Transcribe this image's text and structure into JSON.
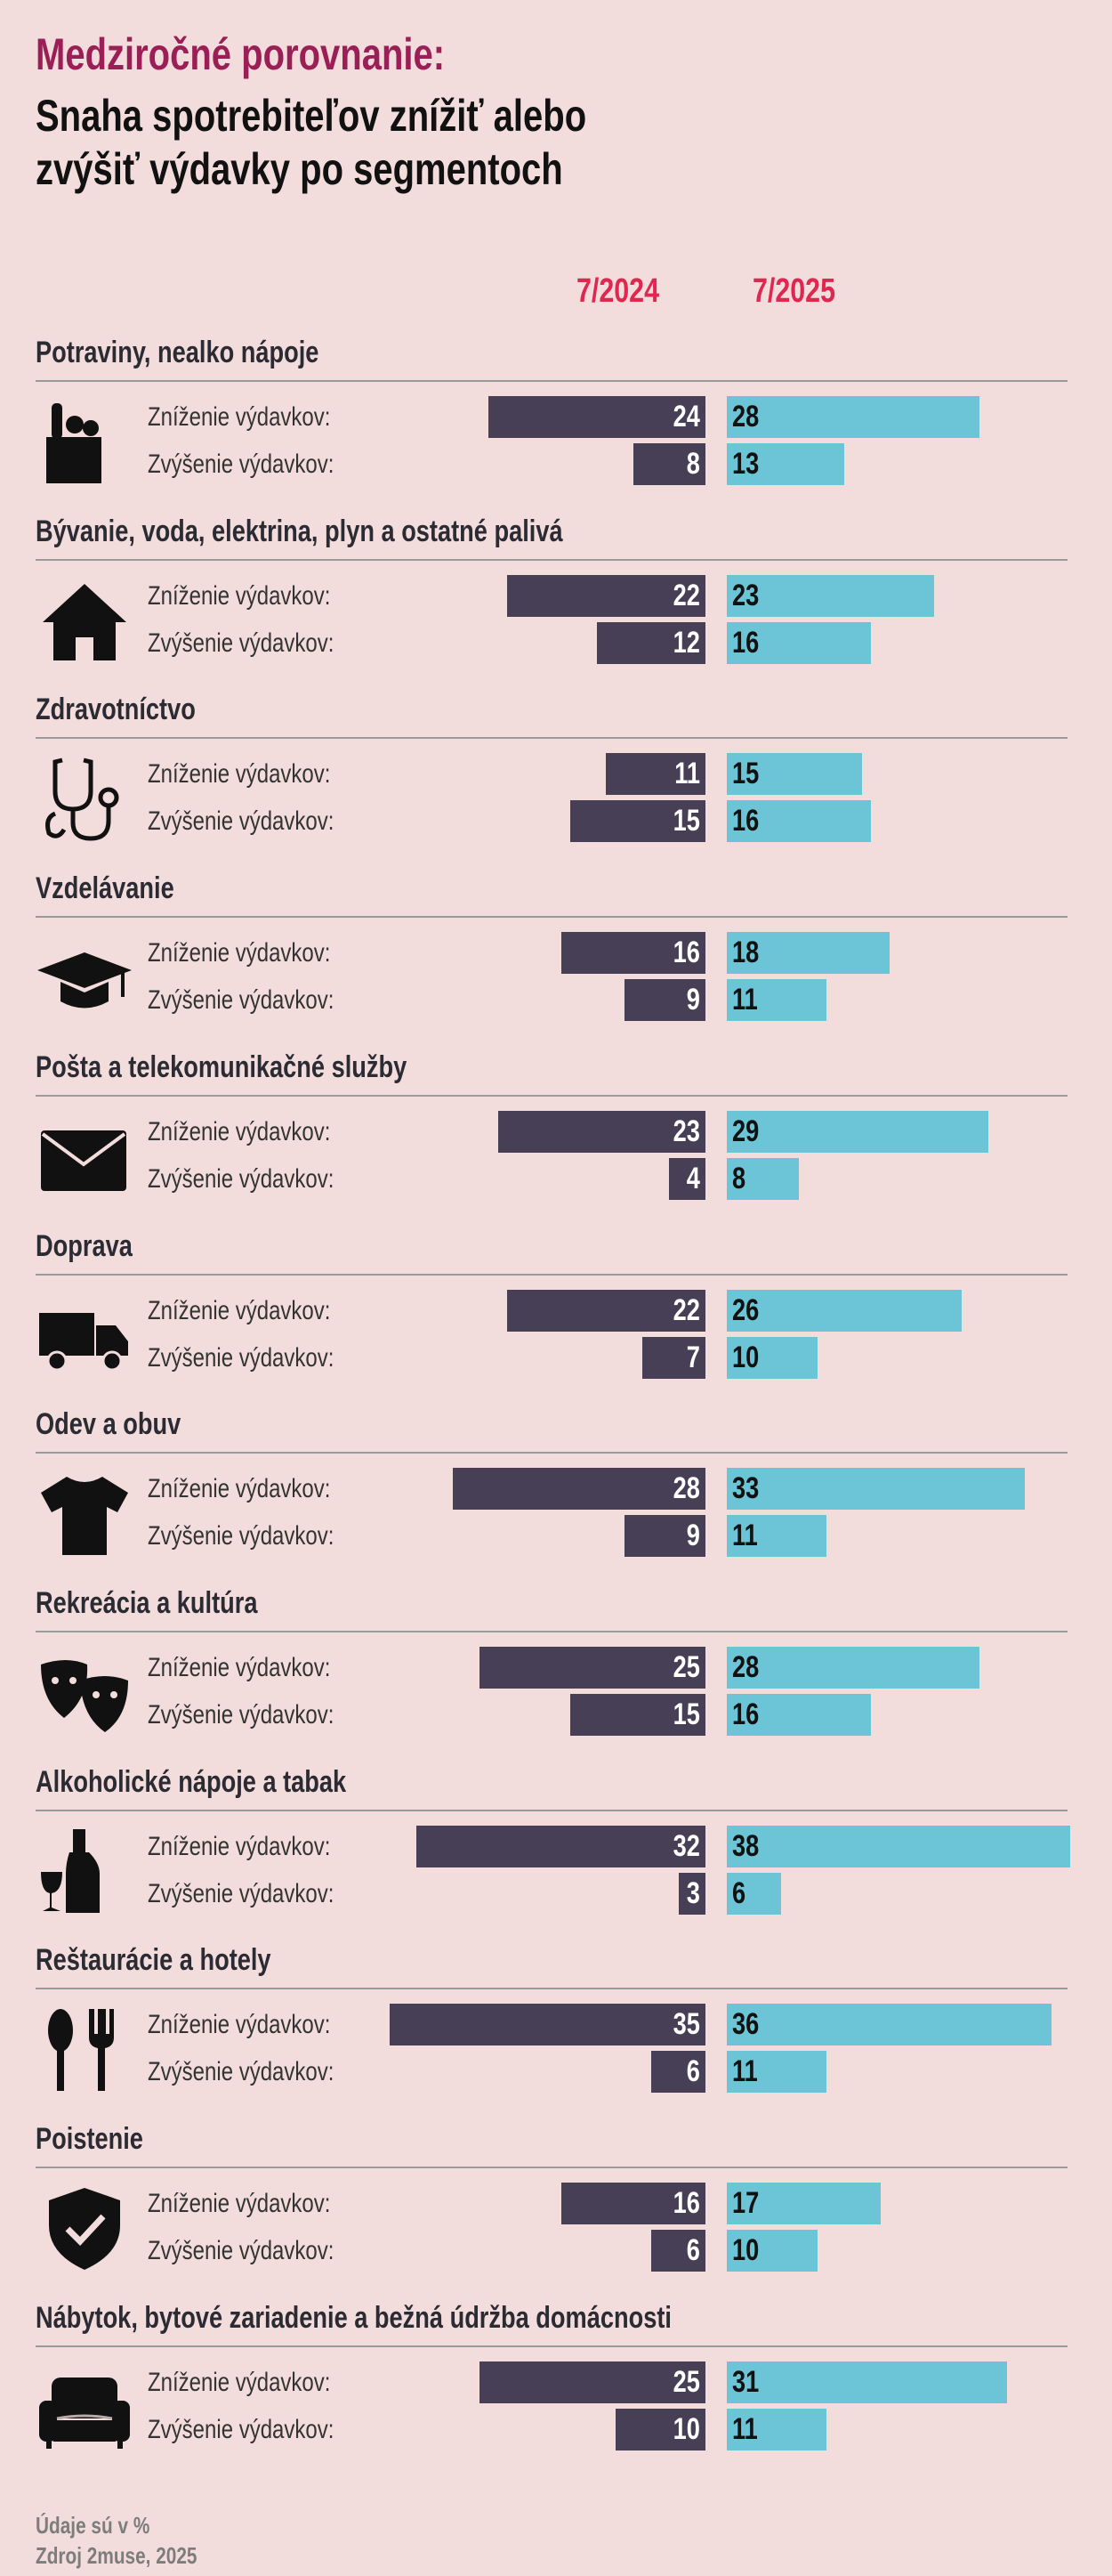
{
  "title_line1": "Medziročné porovnanie:",
  "title_line2": "Snaha spotrebiteľov znížiť alebo",
  "title_line3": "zvýšiť výdavky po segmentoch",
  "colors": {
    "background": "#f3dcdc",
    "series_2024": "#463f55",
    "series_2025": "#6cc5d6",
    "title_accent": "#9b1f57",
    "header_accent": "#e0274f"
  },
  "footer": {
    "unit_note": "Údaje sú v %",
    "source": "Zdroj 2muse, 2025"
  },
  "chart_data": {
    "type": "bar",
    "orientation": "horizontal-butterfly",
    "series_names": [
      "7/2024",
      "7/2025"
    ],
    "row_labels": [
      "Zníženie výdavkov:",
      "Zvýšenie výdavkov:"
    ],
    "unit": "%",
    "categories": [
      {
        "name": "Potraviny, nealko nápoje",
        "icon": "grocery-bag-icon",
        "decrease": [
          24,
          28
        ],
        "increase": [
          8,
          13
        ]
      },
      {
        "name": "Bývanie, voda, elektrina, plyn a ostatné palivá",
        "icon": "house-icon",
        "decrease": [
          22,
          23
        ],
        "increase": [
          12,
          16
        ]
      },
      {
        "name": "Zdravotníctvo",
        "icon": "stethoscope-icon",
        "decrease": [
          11,
          15
        ],
        "increase": [
          15,
          16
        ]
      },
      {
        "name": "Vzdelávanie",
        "icon": "graduation-cap-icon",
        "decrease": [
          16,
          18
        ],
        "increase": [
          9,
          11
        ]
      },
      {
        "name": "Pošta a telekomunikačné služby",
        "icon": "envelope-icon",
        "decrease": [
          23,
          29
        ],
        "increase": [
          4,
          8
        ]
      },
      {
        "name": "Doprava",
        "icon": "truck-icon",
        "decrease": [
          22,
          26
        ],
        "increase": [
          7,
          10
        ]
      },
      {
        "name": "Odev a obuv",
        "icon": "tshirt-icon",
        "decrease": [
          28,
          33
        ],
        "increase": [
          9,
          11
        ]
      },
      {
        "name": "Rekreácia a kultúra",
        "icon": "theater-masks-icon",
        "decrease": [
          25,
          28
        ],
        "increase": [
          15,
          16
        ]
      },
      {
        "name": "Alkoholické nápoje a tabak",
        "icon": "wine-bottle-icon",
        "decrease": [
          32,
          38
        ],
        "increase": [
          3,
          6
        ]
      },
      {
        "name": "Reštaurácie a hotely",
        "icon": "cutlery-icon",
        "decrease": [
          35,
          36
        ],
        "increase": [
          6,
          11
        ]
      },
      {
        "name": "Poistenie",
        "icon": "shield-check-icon",
        "decrease": [
          16,
          17
        ],
        "increase": [
          6,
          10
        ]
      },
      {
        "name": "Nábytok, bytové zariadenie a bežná údržba domácnosti",
        "icon": "armchair-icon",
        "decrease": [
          25,
          31
        ],
        "increase": [
          10,
          11
        ]
      }
    ]
  }
}
